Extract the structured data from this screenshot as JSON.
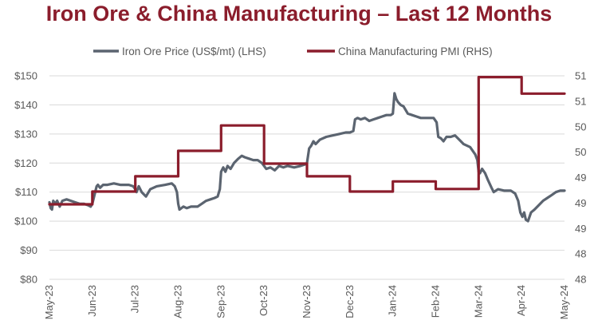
{
  "colors": {
    "title": "#8b1d2c",
    "iron": "#5b6470",
    "pmi": "#8b1d2c",
    "grid": "#d9d9d9",
    "text": "#595959"
  },
  "chart_data": {
    "type": "line",
    "title": "Iron Ore & China Manufacturing – Last 12 Months",
    "legend_position": "top",
    "grid": true,
    "x_ticks": [
      "May-23",
      "Jun-23",
      "Jul-23",
      "Aug-23",
      "Sep-23",
      "Oct-23",
      "Nov-23",
      "Dec-23",
      "Jan-24",
      "Feb-24",
      "Mar-24",
      "Apr-24",
      "May-24"
    ],
    "y_left": {
      "ticks": [
        "$80",
        "$90",
        "$100",
        "$110",
        "$120",
        "$130",
        "$140",
        "$150"
      ],
      "ylim": [
        80,
        150
      ]
    },
    "y_right": {
      "ticks": [
        "48",
        "48",
        "49",
        "49",
        "49",
        "50",
        "50",
        "51",
        "51"
      ],
      "ylim": [
        47.9,
        51.1
      ]
    },
    "series": [
      {
        "name": "Iron Ore Price (US$/mt) (LHS)",
        "axis": "left",
        "x_unit": "months since May-23",
        "points": [
          [
            0.0,
            106.5
          ],
          [
            0.03,
            104.5
          ],
          [
            0.06,
            104
          ],
          [
            0.09,
            107
          ],
          [
            0.13,
            106
          ],
          [
            0.18,
            107
          ],
          [
            0.24,
            105
          ],
          [
            0.3,
            107
          ],
          [
            0.4,
            107.5
          ],
          [
            0.5,
            107
          ],
          [
            0.6,
            106.5
          ],
          [
            0.7,
            106
          ],
          [
            0.8,
            106
          ],
          [
            0.9,
            105.5
          ],
          [
            0.96,
            105
          ],
          [
            1.0,
            106
          ],
          [
            1.05,
            109
          ],
          [
            1.1,
            112
          ],
          [
            1.13,
            112.5
          ],
          [
            1.18,
            111.5
          ],
          [
            1.25,
            112.5
          ],
          [
            1.35,
            112.5
          ],
          [
            1.5,
            113
          ],
          [
            1.65,
            112.5
          ],
          [
            1.85,
            112.5
          ],
          [
            1.95,
            112
          ],
          [
            2.0,
            111
          ],
          [
            2.03,
            110
          ],
          [
            2.08,
            112
          ],
          [
            2.15,
            110
          ],
          [
            2.25,
            108.5
          ],
          [
            2.35,
            111
          ],
          [
            2.5,
            112
          ],
          [
            2.7,
            112.5
          ],
          [
            2.85,
            113
          ],
          [
            2.92,
            112
          ],
          [
            2.97,
            110
          ],
          [
            3.0,
            106
          ],
          [
            3.03,
            104
          ],
          [
            3.12,
            105
          ],
          [
            3.2,
            104.5
          ],
          [
            3.3,
            105
          ],
          [
            3.45,
            105
          ],
          [
            3.55,
            106
          ],
          [
            3.65,
            107
          ],
          [
            3.75,
            107.5
          ],
          [
            3.85,
            108
          ],
          [
            3.92,
            108.5
          ],
          [
            3.97,
            111
          ],
          [
            4.0,
            117
          ],
          [
            4.05,
            118.5
          ],
          [
            4.1,
            117
          ],
          [
            4.15,
            119
          ],
          [
            4.22,
            118
          ],
          [
            4.3,
            120
          ],
          [
            4.4,
            121.5
          ],
          [
            4.48,
            122.5
          ],
          [
            4.55,
            122
          ],
          [
            4.65,
            121.5
          ],
          [
            4.75,
            121
          ],
          [
            4.85,
            121
          ],
          [
            4.95,
            120
          ],
          [
            5.0,
            119
          ],
          [
            5.05,
            118
          ],
          [
            5.15,
            118.5
          ],
          [
            5.25,
            117.5
          ],
          [
            5.35,
            119
          ],
          [
            5.45,
            118.5
          ],
          [
            5.55,
            119
          ],
          [
            5.7,
            118.5
          ],
          [
            5.85,
            119
          ],
          [
            5.95,
            119.5
          ],
          [
            6.0,
            120
          ],
          [
            6.05,
            125
          ],
          [
            6.1,
            126
          ],
          [
            6.15,
            127.5
          ],
          [
            6.2,
            126.5
          ],
          [
            6.3,
            128
          ],
          [
            6.45,
            129
          ],
          [
            6.6,
            129.5
          ],
          [
            6.75,
            130
          ],
          [
            6.9,
            130.5
          ],
          [
            7.0,
            130.5
          ],
          [
            7.08,
            131
          ],
          [
            7.12,
            135
          ],
          [
            7.18,
            135.5
          ],
          [
            7.25,
            135
          ],
          [
            7.35,
            135.5
          ],
          [
            7.45,
            134.5
          ],
          [
            7.55,
            135
          ],
          [
            7.65,
            135.5
          ],
          [
            7.75,
            136
          ],
          [
            7.85,
            136.5
          ],
          [
            7.95,
            136.5
          ],
          [
            8.0,
            137
          ],
          [
            8.04,
            144
          ],
          [
            8.08,
            142
          ],
          [
            8.12,
            141
          ],
          [
            8.18,
            140
          ],
          [
            8.25,
            139.5
          ],
          [
            8.35,
            137
          ],
          [
            8.45,
            136.5
          ],
          [
            8.55,
            136
          ],
          [
            8.65,
            135.5
          ],
          [
            8.8,
            135.5
          ],
          [
            8.95,
            135.5
          ],
          [
            9.02,
            134
          ],
          [
            9.06,
            129
          ],
          [
            9.12,
            128.5
          ],
          [
            9.18,
            127.5
          ],
          [
            9.25,
            129
          ],
          [
            9.35,
            129
          ],
          [
            9.45,
            129.5
          ],
          [
            9.55,
            128
          ],
          [
            9.65,
            126.5
          ],
          [
            9.8,
            125.5
          ],
          [
            9.92,
            123
          ],
          [
            9.97,
            121
          ],
          [
            10.0,
            117
          ],
          [
            10.03,
            116.5
          ],
          [
            10.08,
            118
          ],
          [
            10.15,
            116.5
          ],
          [
            10.22,
            114
          ],
          [
            10.3,
            111.5
          ],
          [
            10.35,
            110
          ],
          [
            10.45,
            111
          ],
          [
            10.6,
            110.5
          ],
          [
            10.75,
            110.5
          ],
          [
            10.85,
            109.5
          ],
          [
            10.92,
            107
          ],
          [
            10.97,
            103
          ],
          [
            11.02,
            101.5
          ],
          [
            11.06,
            103
          ],
          [
            11.1,
            100.5
          ],
          [
            11.15,
            100
          ],
          [
            11.22,
            103
          ],
          [
            11.3,
            104
          ],
          [
            11.4,
            105.5
          ],
          [
            11.5,
            107
          ],
          [
            11.6,
            108
          ],
          [
            11.7,
            109
          ],
          [
            11.8,
            110
          ],
          [
            11.9,
            110.5
          ],
          [
            12.0,
            110.5
          ]
        ]
      },
      {
        "name": "China Manufacturing PMI (RHS)",
        "axis": "right",
        "x_unit": "months since May-23",
        "points": [
          [
            0,
            49.08
          ],
          [
            1,
            49.08
          ],
          [
            1,
            49.28
          ],
          [
            2,
            49.28
          ],
          [
            2,
            49.52
          ],
          [
            3,
            49.52
          ],
          [
            3,
            49.92
          ],
          [
            4,
            49.92
          ],
          [
            4,
            50.32
          ],
          [
            5,
            50.32
          ],
          [
            5,
            49.72
          ],
          [
            6,
            49.72
          ],
          [
            6,
            49.52
          ],
          [
            7,
            49.52
          ],
          [
            7,
            49.28
          ],
          [
            8,
            49.28
          ],
          [
            8,
            49.44
          ],
          [
            9,
            49.44
          ],
          [
            9,
            49.32
          ],
          [
            10,
            49.32
          ],
          [
            10,
            51.08
          ],
          [
            11,
            51.08
          ],
          [
            11,
            50.82
          ],
          [
            12,
            50.82
          ]
        ]
      }
    ]
  }
}
